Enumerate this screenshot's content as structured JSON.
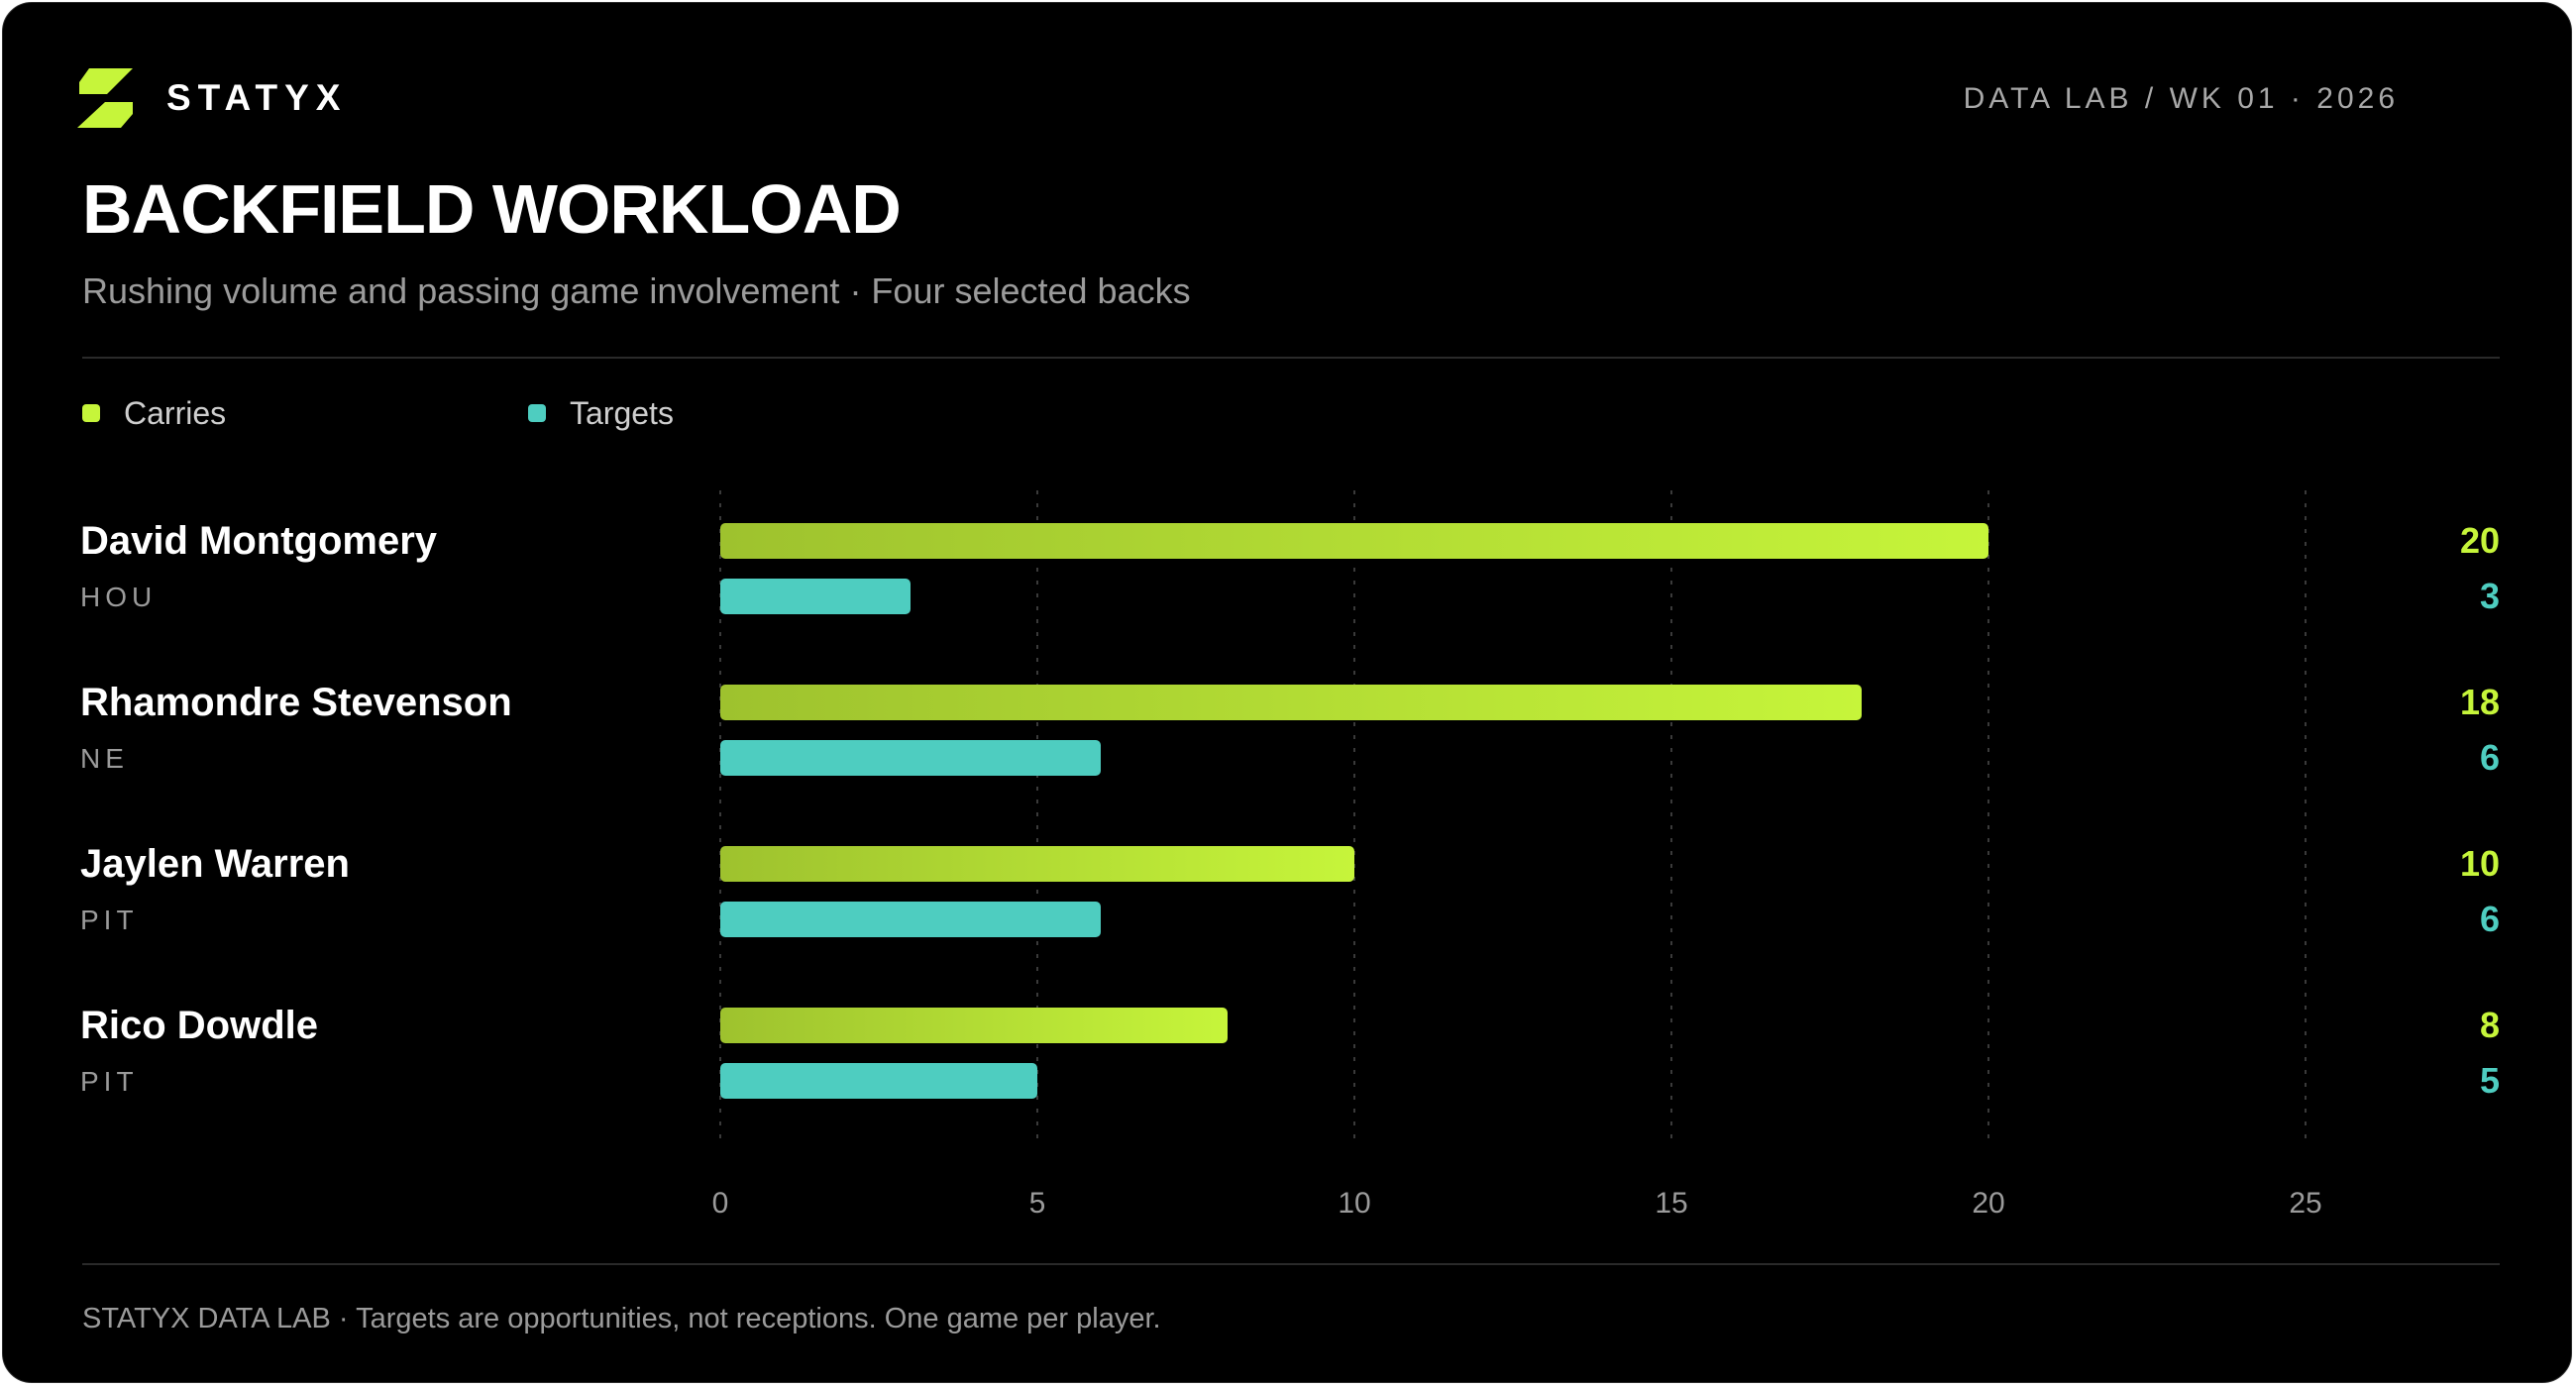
{
  "brand": {
    "name": "STATYX",
    "logo_icon": "slash-bolt-icon",
    "accent": "#c6f53a"
  },
  "header": {
    "meta": "DATA LAB / WK 01 · 2026",
    "title": "BACKFIELD WORKLOAD",
    "subtitle": "Rushing volume and passing game involvement · Four selected backs"
  },
  "legend": [
    {
      "label": "Carries",
      "color": "#c6f53a"
    },
    {
      "label": "Targets",
      "color": "#4ecdc0"
    }
  ],
  "footer": {
    "text": "STATYX DATA LAB · Targets are opportunities, not receptions. One game per player."
  },
  "chart_data": {
    "type": "bar",
    "orientation": "horizontal",
    "categories": [
      "David Montgomery",
      "Rhamondre Stevenson",
      "Jaylen Warren",
      "Rico Dowdle"
    ],
    "teams": [
      "HOU",
      "NE",
      "PIT",
      "PIT"
    ],
    "series": [
      {
        "name": "Carries",
        "values": [
          20,
          18,
          10,
          8
        ],
        "color": "#c6f53a",
        "gradient_start": "#9ec22e"
      },
      {
        "name": "Targets",
        "values": [
          3,
          6,
          6,
          5
        ],
        "color": "#4ecdc0"
      }
    ],
    "xlim": [
      0,
      25
    ],
    "xticks": [
      0,
      5,
      10,
      15,
      20,
      25
    ],
    "grid": true,
    "legend_position": "top-left"
  }
}
